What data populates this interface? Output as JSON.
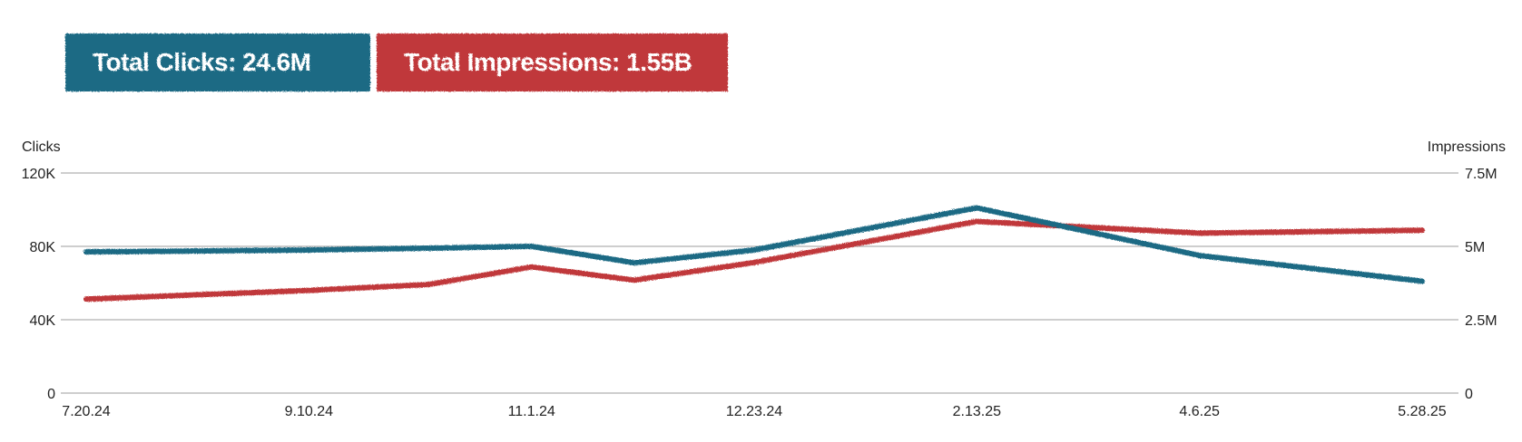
{
  "summary": {
    "clicks_label": "Total Clicks: 24.6M",
    "impressions_label": "Total Impressions: 1.55B"
  },
  "colors": {
    "clicks": "#1d6a84",
    "impressions": "#c0393a",
    "grid": "#b0b0b0"
  },
  "chart_data": {
    "type": "line",
    "left_axis_label": "Clicks",
    "right_axis_label": "Impressions",
    "left_ticks": [
      "0",
      "40K",
      "80K",
      "120K"
    ],
    "right_ticks": [
      "0",
      "2.5M",
      "5M",
      "7.5M"
    ],
    "left_range": [
      0,
      120000
    ],
    "right_range": [
      0,
      7500000
    ],
    "x_tick_labels": [
      "7.20.24",
      "9.10.24",
      "11.1.24",
      "12.23.24",
      "2.13.25",
      "4.6.25",
      "5.28.25"
    ],
    "x": [
      "7.20.24",
      "9.10.24",
      "10.8.24",
      "11.1.24",
      "11.25.24",
      "12.23.24",
      "2.13.25",
      "4.6.25",
      "5.28.25"
    ],
    "grid": true,
    "series": [
      {
        "name": "Clicks",
        "axis": "left",
        "color": "#1d6a84",
        "values": [
          77000,
          78000,
          79000,
          80000,
          71000,
          78000,
          101000,
          75000,
          61000
        ]
      },
      {
        "name": "Impressions",
        "axis": "right",
        "color": "#c0393a",
        "values": [
          3200000,
          3500000,
          3700000,
          4300000,
          3850000,
          4450000,
          5850000,
          5450000,
          5550000
        ]
      }
    ]
  }
}
